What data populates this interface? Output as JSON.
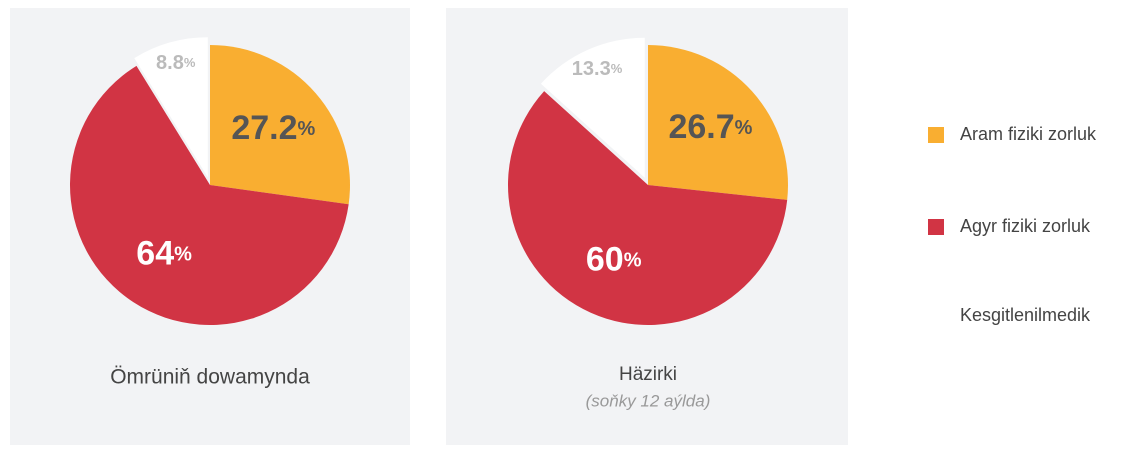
{
  "chart_data": [
    {
      "type": "pie",
      "title": "Ömrüniň dowamynda",
      "categories": [
        "Aram fiziki zorluk",
        "Agyr fiziki zorluk",
        "Kesgitlenilmedik"
      ],
      "values": [
        27.2,
        64,
        8.8
      ],
      "value_labels": [
        "27.2%",
        "64%",
        "8.8%"
      ],
      "colors": [
        "#f9ae31",
        "#d13444",
        "#ffffff"
      ]
    },
    {
      "type": "pie",
      "title": "Häzirki",
      "subtitle": "(soňky 12 aýlda)",
      "categories": [
        "Aram fiziki zorluk",
        "Agyr fiziki zorluk",
        "Kesgitlenilmedik"
      ],
      "values": [
        26.7,
        60,
        13.3
      ],
      "value_labels": [
        "26.7%",
        "60%",
        "13.3%"
      ],
      "colors": [
        "#f9ae31",
        "#d13444",
        "#ffffff"
      ]
    }
  ]
}
